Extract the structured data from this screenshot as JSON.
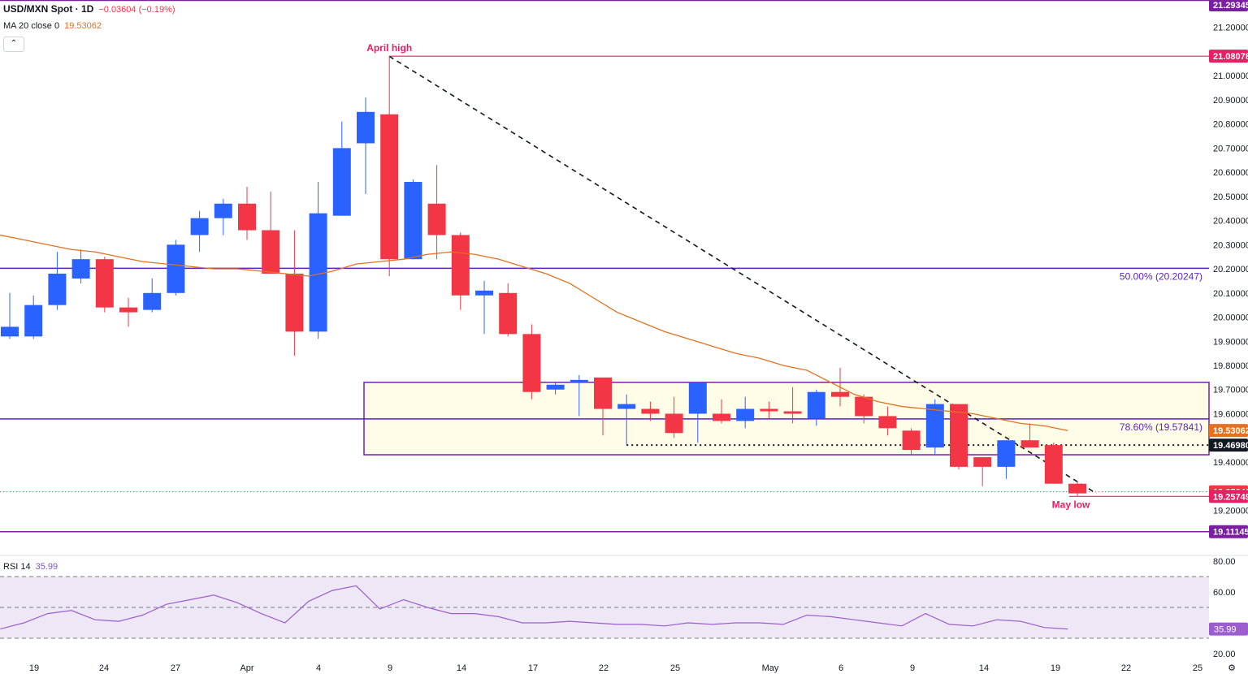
{
  "header": {
    "symbol": "USD/MXN Spot · 1D",
    "change": "−0.03604 (−0.19%)",
    "ma_label": "MA 20 close 0",
    "ma_value": "19.53062",
    "collapse_icon": "chevron-up-icon",
    "collapse_glyph": "⌃"
  },
  "rsi_header": {
    "label": "RSI 14",
    "value": "35.99"
  },
  "colors": {
    "up": "#2962ff",
    "down": "#f23645",
    "ma": "#e4711f",
    "fib": "#5b1ec7",
    "box_border": "#7b1fa2",
    "box_fill": "#fffde7",
    "rsi": "#9c5ecf",
    "rsi_band": "#ede7f6",
    "annot": "#e91e63"
  },
  "chart_data": [
    {
      "type": "candlestick",
      "title": "USD/MXN Spot · 1D",
      "x": [
        "Mar 18",
        "Mar 19",
        "Mar 20",
        "Mar 21",
        "Mar 22",
        "Mar 25",
        "Mar 26",
        "Mar 27",
        "Mar 28",
        "Apr 1",
        "Apr 2",
        "Apr 3",
        "Apr 4",
        "Apr 5",
        "Apr 8",
        "Apr 9",
        "Apr 10",
        "Apr 11",
        "Apr 12",
        "Apr 15",
        "Apr 16",
        "Apr 17",
        "Apr 18",
        "Apr 19",
        "Apr 22",
        "Apr 23",
        "Apr 24",
        "Apr 25",
        "Apr 26",
        "Apr 29",
        "Apr 30",
        "May 1",
        "May 2",
        "May 3",
        "May 6",
        "May 7",
        "May 8",
        "May 9",
        "May 10",
        "May 13",
        "May 14",
        "May 15",
        "May 16",
        "May 17",
        "May 20"
      ],
      "ohlc": [
        [
          19.92,
          20.1,
          19.91,
          19.96
        ],
        [
          19.92,
          20.09,
          19.91,
          20.05
        ],
        [
          20.05,
          20.27,
          20.03,
          20.18
        ],
        [
          20.16,
          20.28,
          20.14,
          20.24
        ],
        [
          20.24,
          20.25,
          20.02,
          20.04
        ],
        [
          20.04,
          20.08,
          19.96,
          20.02
        ],
        [
          20.03,
          20.16,
          20.02,
          20.1
        ],
        [
          20.1,
          20.32,
          20.09,
          20.3
        ],
        [
          20.34,
          20.44,
          20.27,
          20.41
        ],
        [
          20.41,
          20.49,
          20.34,
          20.47
        ],
        [
          20.47,
          20.54,
          20.32,
          20.36
        ],
        [
          20.36,
          20.52,
          20.18,
          20.18
        ],
        [
          20.18,
          20.36,
          19.84,
          19.94
        ],
        [
          19.94,
          20.56,
          19.91,
          20.43
        ],
        [
          20.42,
          20.81,
          20.42,
          20.7
        ],
        [
          20.72,
          20.91,
          20.51,
          20.85
        ],
        [
          20.84,
          21.08,
          20.17,
          20.24
        ],
        [
          20.24,
          20.57,
          20.24,
          20.56
        ],
        [
          20.47,
          20.63,
          20.24,
          20.34
        ],
        [
          20.34,
          20.35,
          20.03,
          20.09
        ],
        [
          20.09,
          20.15,
          19.93,
          20.11
        ],
        [
          20.1,
          20.14,
          19.92,
          19.93
        ],
        [
          19.93,
          19.97,
          19.66,
          19.69
        ],
        [
          19.7,
          19.73,
          19.68,
          19.72
        ],
        [
          19.73,
          19.76,
          19.59,
          19.74
        ],
        [
          19.75,
          19.75,
          19.51,
          19.62
        ],
        [
          19.62,
          19.68,
          19.47,
          19.64
        ],
        [
          19.62,
          19.65,
          19.57,
          19.6
        ],
        [
          19.6,
          19.67,
          19.5,
          19.52
        ],
        [
          19.6,
          19.73,
          19.48,
          19.73
        ],
        [
          19.6,
          19.66,
          19.56,
          19.57
        ],
        [
          19.57,
          19.67,
          19.54,
          19.62
        ],
        [
          19.62,
          19.65,
          19.58,
          19.61
        ],
        [
          19.61,
          19.71,
          19.56,
          19.6
        ],
        [
          19.58,
          19.7,
          19.55,
          19.69
        ],
        [
          19.69,
          19.79,
          19.63,
          19.67
        ],
        [
          19.67,
          19.68,
          19.56,
          19.59
        ],
        [
          19.59,
          19.63,
          19.51,
          19.54
        ],
        [
          19.53,
          19.54,
          19.43,
          19.45
        ],
        [
          19.46,
          19.66,
          19.43,
          19.64
        ],
        [
          19.64,
          19.64,
          19.37,
          19.38
        ],
        [
          19.42,
          19.42,
          19.3,
          19.38
        ],
        [
          19.38,
          19.49,
          19.33,
          19.49
        ],
        [
          19.49,
          19.56,
          19.46,
          19.46
        ],
        [
          19.47,
          19.48,
          19.31,
          19.31
        ]
      ],
      "last_candle": [
        19.31,
        19.32,
        19.26,
        19.27
      ],
      "ma20": [
        20.34,
        20.32,
        20.3,
        20.28,
        20.27,
        20.25,
        20.23,
        20.22,
        20.21,
        20.2,
        20.2,
        20.19,
        20.18,
        20.17,
        20.19,
        20.22,
        20.23,
        20.24,
        20.26,
        20.27,
        20.26,
        20.24,
        20.21,
        20.18,
        20.14,
        20.08,
        20.02,
        19.98,
        19.94,
        19.91,
        19.88,
        19.85,
        19.83,
        19.8,
        19.78,
        19.73,
        19.68,
        19.65,
        19.63,
        19.62,
        19.61,
        19.6,
        19.58,
        19.56,
        19.55,
        19.53
      ],
      "ylim": [
        19.05,
        21.3
      ],
      "price_labels": [
        "21.20000",
        "21.00000",
        "20.90000",
        "20.80000",
        "20.70000",
        "20.60000",
        "20.50000",
        "20.40000",
        "20.30000",
        "20.20000",
        "20.10000",
        "20.00000",
        "19.90000",
        "19.80000",
        "19.70000",
        "19.60000",
        "19.40000",
        "19.20000"
      ],
      "price_tags": [
        {
          "label": "21.29345",
          "value": 21.29345,
          "color": "#7b1fa2"
        },
        {
          "label": "21.08078",
          "value": 21.08078,
          "color": "#e91e63"
        },
        {
          "label": "19.53062",
          "value": 19.53062,
          "color": "#e4711f"
        },
        {
          "label": "19.46980",
          "value": 19.4698,
          "color": "#131722"
        },
        {
          "label": "19.27646",
          "value": 19.27646,
          "color": "#f23645"
        },
        {
          "label": "19.25749",
          "value": 19.25749,
          "color": "#e91e63"
        },
        {
          "label": "19.11145",
          "value": 19.11145,
          "color": "#7b1fa2"
        }
      ],
      "fib_levels": [
        {
          "label": "50.00% (20.20247)",
          "value": 20.20247
        },
        {
          "label": "78.60% (19.57841)",
          "value": 19.57841
        }
      ],
      "range_box": {
        "top": 19.73,
        "bottom": 19.43,
        "from": "Apr 9"
      },
      "support_dotted": 19.4698,
      "annotations": [
        {
          "label": "April high",
          "value": 21.08078
        },
        {
          "label": "May low",
          "value": 19.25749
        }
      ],
      "x_ticks": [
        "19",
        "24",
        "27",
        "Apr",
        "4",
        "9",
        "14",
        "17",
        "22",
        "25",
        "May",
        "6",
        "9",
        "14",
        "19",
        "22",
        "25"
      ]
    },
    {
      "type": "line",
      "title": "RSI 14",
      "values": [
        36,
        40,
        46,
        48,
        42,
        41,
        45,
        52,
        55,
        58,
        53,
        46,
        40,
        54,
        61,
        64,
        49,
        55,
        50,
        46,
        46,
        44,
        40,
        40,
        41,
        40,
        39,
        39,
        38,
        40,
        39,
        40,
        40,
        39,
        45,
        44,
        42,
        40,
        38,
        46,
        39,
        38,
        42,
        41,
        37,
        36
      ],
      "ylim": [
        20,
        80
      ],
      "bands": [
        70,
        50,
        30
      ],
      "y_labels": [
        "80.00",
        "60.00",
        "20.00"
      ],
      "last_value": "35.99"
    }
  ]
}
